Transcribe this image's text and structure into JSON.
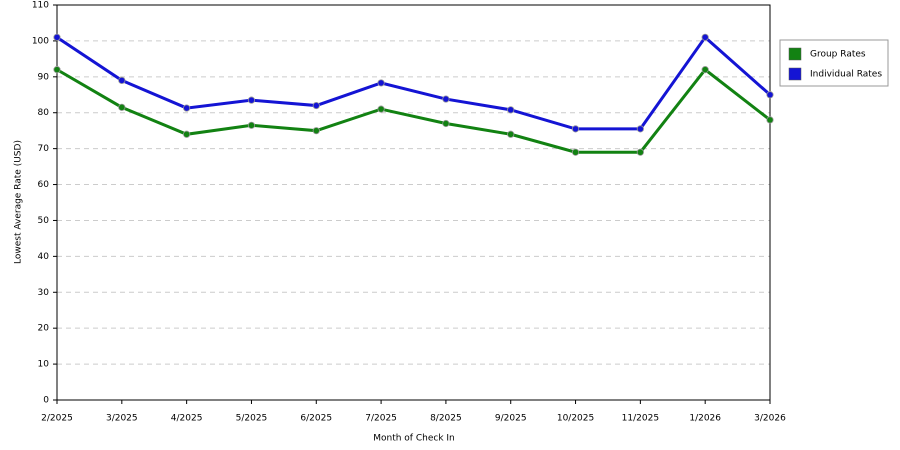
{
  "chart_data": {
    "type": "line",
    "x_label": "Month of Check In",
    "y_label": "Lowest Average Rate (USD)",
    "categories": [
      "2/2025",
      "3/2025",
      "4/2025",
      "5/2025",
      "6/2025",
      "7/2025",
      "8/2025",
      "9/2025",
      "10/2025",
      "11/2025",
      "1/2026",
      "3/2026"
    ],
    "series": [
      {
        "name": "Group Rates",
        "color": "#128212",
        "values": [
          92,
          81.5,
          74,
          76.5,
          75,
          81,
          77,
          74,
          69,
          69,
          92,
          78
        ]
      },
      {
        "name": "Individual Rates",
        "color": "#1414d4",
        "values": [
          101,
          89,
          81.3,
          83.5,
          82,
          88.3,
          83.8,
          80.8,
          75.5,
          75.5,
          101,
          85
        ]
      }
    ],
    "ylim": [
      0,
      110
    ],
    "yticks": [
      0,
      10,
      20,
      30,
      40,
      50,
      60,
      70,
      80,
      90,
      100,
      110
    ],
    "grid": true
  }
}
